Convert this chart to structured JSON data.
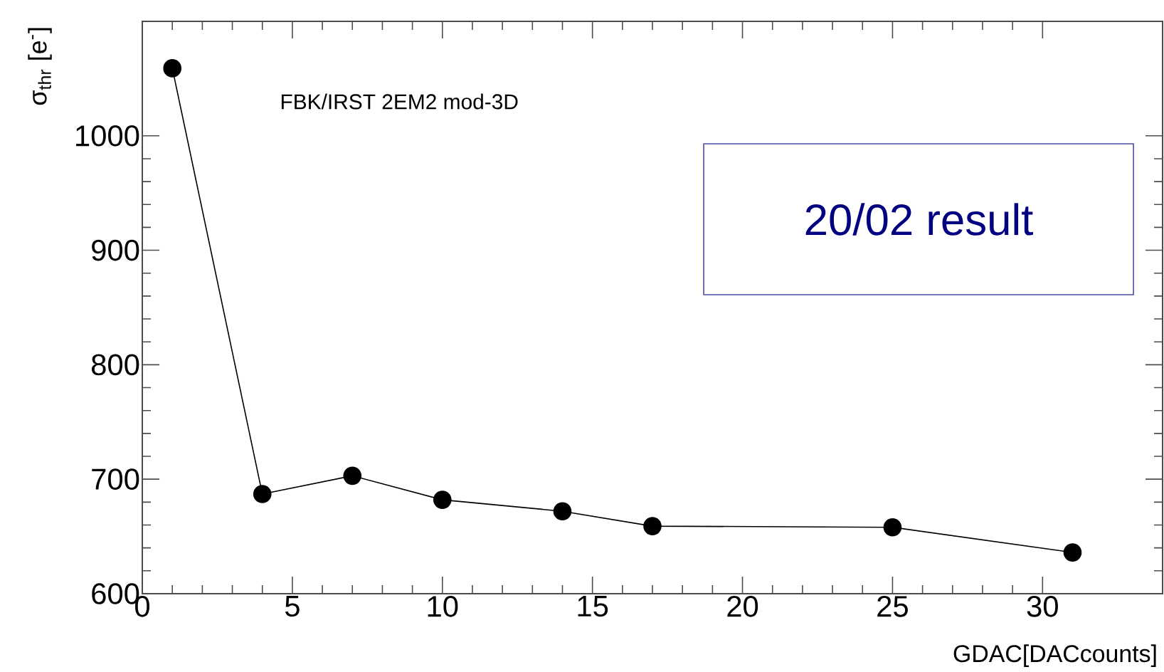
{
  "chart_data": {
    "type": "line",
    "xlabel": "GDAC[DACcounts]",
    "ylabel": "σ$_{thr}$ [e$^{-}$]",
    "annotations": [
      "FBK/IRST 2EM2 mod-3D",
      "20/02 result"
    ],
    "x": [
      1,
      4,
      7,
      10,
      14,
      17,
      25,
      31
    ],
    "series": [
      {
        "color": "#000000",
        "values": [
          1059,
          687,
          703,
          682,
          672,
          659,
          658,
          636
        ]
      }
    ],
    "xlim": [
      0,
      34
    ],
    "ylim": [
      600,
      1100
    ],
    "xticks": [
      0,
      5,
      10,
      15,
      20,
      25,
      30
    ],
    "yticks": [
      600,
      700,
      800,
      900,
      1000
    ],
    "grid": false,
    "marker": "circle",
    "line_style": "solid"
  }
}
